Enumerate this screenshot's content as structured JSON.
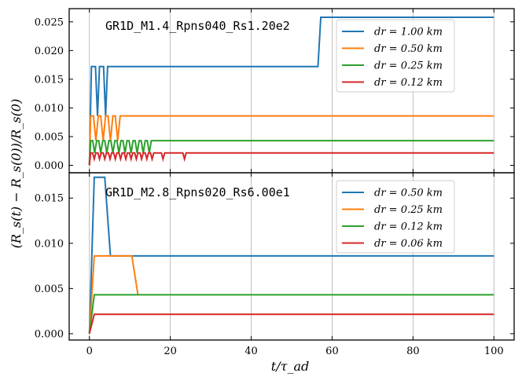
{
  "chart_data": [
    {
      "type": "line",
      "title": "GR1D_M1.4_Rpns040_Rs1.20e2",
      "xlabel": "t/τ_ad",
      "ylabel": "(R_s(t) − R_s(0))/R_s(0)",
      "xlim": [
        -5,
        105
      ],
      "ylim": [
        -0.0013,
        0.0273
      ],
      "grid": "vertical",
      "legend": "top-right",
      "x_ticks": [
        {
          "v": 0,
          "label": "0"
        },
        {
          "v": 20,
          "label": "20"
        },
        {
          "v": 40,
          "label": "40"
        },
        {
          "v": 60,
          "label": "60"
        },
        {
          "v": 80,
          "label": "80"
        },
        {
          "v": 100,
          "label": "100"
        }
      ],
      "y_ticks": [
        {
          "v": 0.0,
          "label": "0.000"
        },
        {
          "v": 0.005,
          "label": "0.005"
        },
        {
          "v": 0.01,
          "label": "0.010"
        },
        {
          "v": 0.015,
          "label": "0.015"
        },
        {
          "v": 0.02,
          "label": "0.020"
        },
        {
          "v": 0.025,
          "label": "0.025"
        }
      ],
      "series": [
        {
          "name": "dr = 1.00 km",
          "color": "#1f77b4",
          "points": [
            [
              0,
              0
            ],
            [
              0.5,
              0.0172
            ],
            [
              1.5,
              0.0172
            ],
            [
              2.0,
              0.0086
            ],
            [
              2.5,
              0.0172
            ],
            [
              3.5,
              0.0172
            ],
            [
              4.0,
              0.0086
            ],
            [
              4.5,
              0.0172
            ],
            [
              56.5,
              0.0172
            ],
            [
              57.2,
              0.0258
            ],
            [
              100,
              0.0258
            ]
          ]
        },
        {
          "name": "dr = 0.50 km",
          "color": "#ff7f0e",
          "points": [
            [
              0,
              0
            ],
            [
              0.3,
              0.0086
            ],
            [
              1.0,
              0.0086
            ],
            [
              1.6,
              0.0043
            ],
            [
              2.2,
              0.0086
            ],
            [
              2.8,
              0.0086
            ],
            [
              3.4,
              0.0043
            ],
            [
              4.0,
              0.0086
            ],
            [
              4.6,
              0.0086
            ],
            [
              5.2,
              0.0043
            ],
            [
              5.8,
              0.0086
            ],
            [
              6.4,
              0.0086
            ],
            [
              7.0,
              0.0043
            ],
            [
              7.6,
              0.0086
            ],
            [
              100,
              0.0086
            ]
          ]
        },
        {
          "name": "dr = 0.25 km",
          "color": "#2ca02c",
          "points": [
            [
              0,
              0
            ],
            [
              0.3,
              0.0043
            ],
            [
              0.8,
              0.0043
            ],
            [
              1.3,
              0.00215
            ],
            [
              1.8,
              0.0043
            ],
            [
              2.3,
              0.0043
            ],
            [
              2.8,
              0.00215
            ],
            [
              3.3,
              0.0043
            ],
            [
              3.8,
              0.0043
            ],
            [
              4.3,
              0.00215
            ],
            [
              4.8,
              0.0043
            ],
            [
              5.3,
              0.0043
            ],
            [
              5.8,
              0.00215
            ],
            [
              6.3,
              0.0043
            ],
            [
              6.8,
              0.0043
            ],
            [
              7.3,
              0.00215
            ],
            [
              7.8,
              0.0043
            ],
            [
              8.3,
              0.0043
            ],
            [
              8.8,
              0.00215
            ],
            [
              9.3,
              0.0043
            ],
            [
              9.8,
              0.0043
            ],
            [
              10.3,
              0.00215
            ],
            [
              10.8,
              0.0043
            ],
            [
              11.3,
              0.0043
            ],
            [
              11.8,
              0.00215
            ],
            [
              12.3,
              0.0043
            ],
            [
              12.8,
              0.0043
            ],
            [
              13.3,
              0.00215
            ],
            [
              13.8,
              0.0043
            ],
            [
              14.3,
              0.0043
            ],
            [
              14.8,
              0.00215
            ],
            [
              15.3,
              0.0043
            ],
            [
              100,
              0.0043
            ]
          ]
        },
        {
          "name": "dr = 0.12 km",
          "color": "#d62728",
          "points": [
            [
              0,
              0
            ],
            [
              0.3,
              0.00215
            ],
            [
              0.8,
              0.00215
            ],
            [
              1.2,
              0.0011
            ],
            [
              1.6,
              0.00215
            ],
            [
              2.1,
              0.00215
            ],
            [
              2.5,
              0.0011
            ],
            [
              2.9,
              0.00215
            ],
            [
              3.4,
              0.00215
            ],
            [
              3.8,
              0.0011
            ],
            [
              4.2,
              0.00215
            ],
            [
              4.7,
              0.00215
            ],
            [
              5.1,
              0.0011
            ],
            [
              5.5,
              0.00215
            ],
            [
              6.0,
              0.00215
            ],
            [
              6.4,
              0.0011
            ],
            [
              6.8,
              0.00215
            ],
            [
              7.3,
              0.00215
            ],
            [
              7.7,
              0.0011
            ],
            [
              8.1,
              0.00215
            ],
            [
              8.6,
              0.00215
            ],
            [
              9.0,
              0.0011
            ],
            [
              9.4,
              0.00215
            ],
            [
              9.9,
              0.00215
            ],
            [
              10.3,
              0.0011
            ],
            [
              10.7,
              0.00215
            ],
            [
              11.2,
              0.00215
            ],
            [
              11.6,
              0.0011
            ],
            [
              12.0,
              0.00215
            ],
            [
              12.5,
              0.00215
            ],
            [
              12.9,
              0.0011
            ],
            [
              13.3,
              0.00215
            ],
            [
              13.8,
              0.00215
            ],
            [
              14.2,
              0.0011
            ],
            [
              14.6,
              0.00215
            ],
            [
              15.1,
              0.00215
            ],
            [
              15.5,
              0.0011
            ],
            [
              15.9,
              0.00215
            ],
            [
              17.8,
              0.00215
            ],
            [
              18.2,
              0.0011
            ],
            [
              18.6,
              0.00215
            ],
            [
              23.1,
              0.00215
            ],
            [
              23.5,
              0.0011
            ],
            [
              23.9,
              0.00215
            ],
            [
              100,
              0.00215
            ]
          ]
        }
      ]
    },
    {
      "type": "line",
      "title": "GR1D_M2.8_Rpns020_Rs6.00e1",
      "xlabel": "t/τ_ad",
      "ylabel": "(R_s(t) − R_s(0))/R_s(0)",
      "xlim": [
        -5,
        105
      ],
      "ylim": [
        -0.0007,
        0.0178
      ],
      "grid": "vertical",
      "legend": "top-right",
      "x_ticks": [
        {
          "v": 0,
          "label": "0"
        },
        {
          "v": 20,
          "label": "20"
        },
        {
          "v": 40,
          "label": "40"
        },
        {
          "v": 60,
          "label": "60"
        },
        {
          "v": 80,
          "label": "80"
        },
        {
          "v": 100,
          "label": "100"
        }
      ],
      "y_ticks": [
        {
          "v": 0.0,
          "label": "0.000"
        },
        {
          "v": 0.005,
          "label": "0.005"
        },
        {
          "v": 0.01,
          "label": "0.010"
        },
        {
          "v": 0.015,
          "label": "0.015"
        }
      ],
      "series": [
        {
          "name": "dr = 0.50 km",
          "color": "#1f77b4",
          "points": [
            [
              0,
              0
            ],
            [
              1.2,
              0.0173
            ],
            [
              3.8,
              0.0173
            ],
            [
              5.2,
              0.0086
            ],
            [
              100,
              0.0086
            ]
          ]
        },
        {
          "name": "dr = 0.25 km",
          "color": "#ff7f0e",
          "points": [
            [
              0,
              0
            ],
            [
              1.2,
              0.0086
            ],
            [
              10.5,
              0.0086
            ],
            [
              12.0,
              0.0043
            ]
          ]
        },
        {
          "name": "dr = 0.12 km",
          "color": "#2ca02c",
          "points": [
            [
              0,
              0
            ],
            [
              1.2,
              0.0043
            ],
            [
              100,
              0.0043
            ]
          ]
        },
        {
          "name": "dr = 0.06 km",
          "color": "#d62728",
          "points": [
            [
              0,
              0
            ],
            [
              1.2,
              0.00215
            ],
            [
              100,
              0.00215
            ]
          ]
        }
      ]
    }
  ],
  "figure": {
    "shared_xlabel": "t/τ_ad",
    "shared_ylabel": "(R_s(t) − R_s(0))/R_s(0)"
  }
}
